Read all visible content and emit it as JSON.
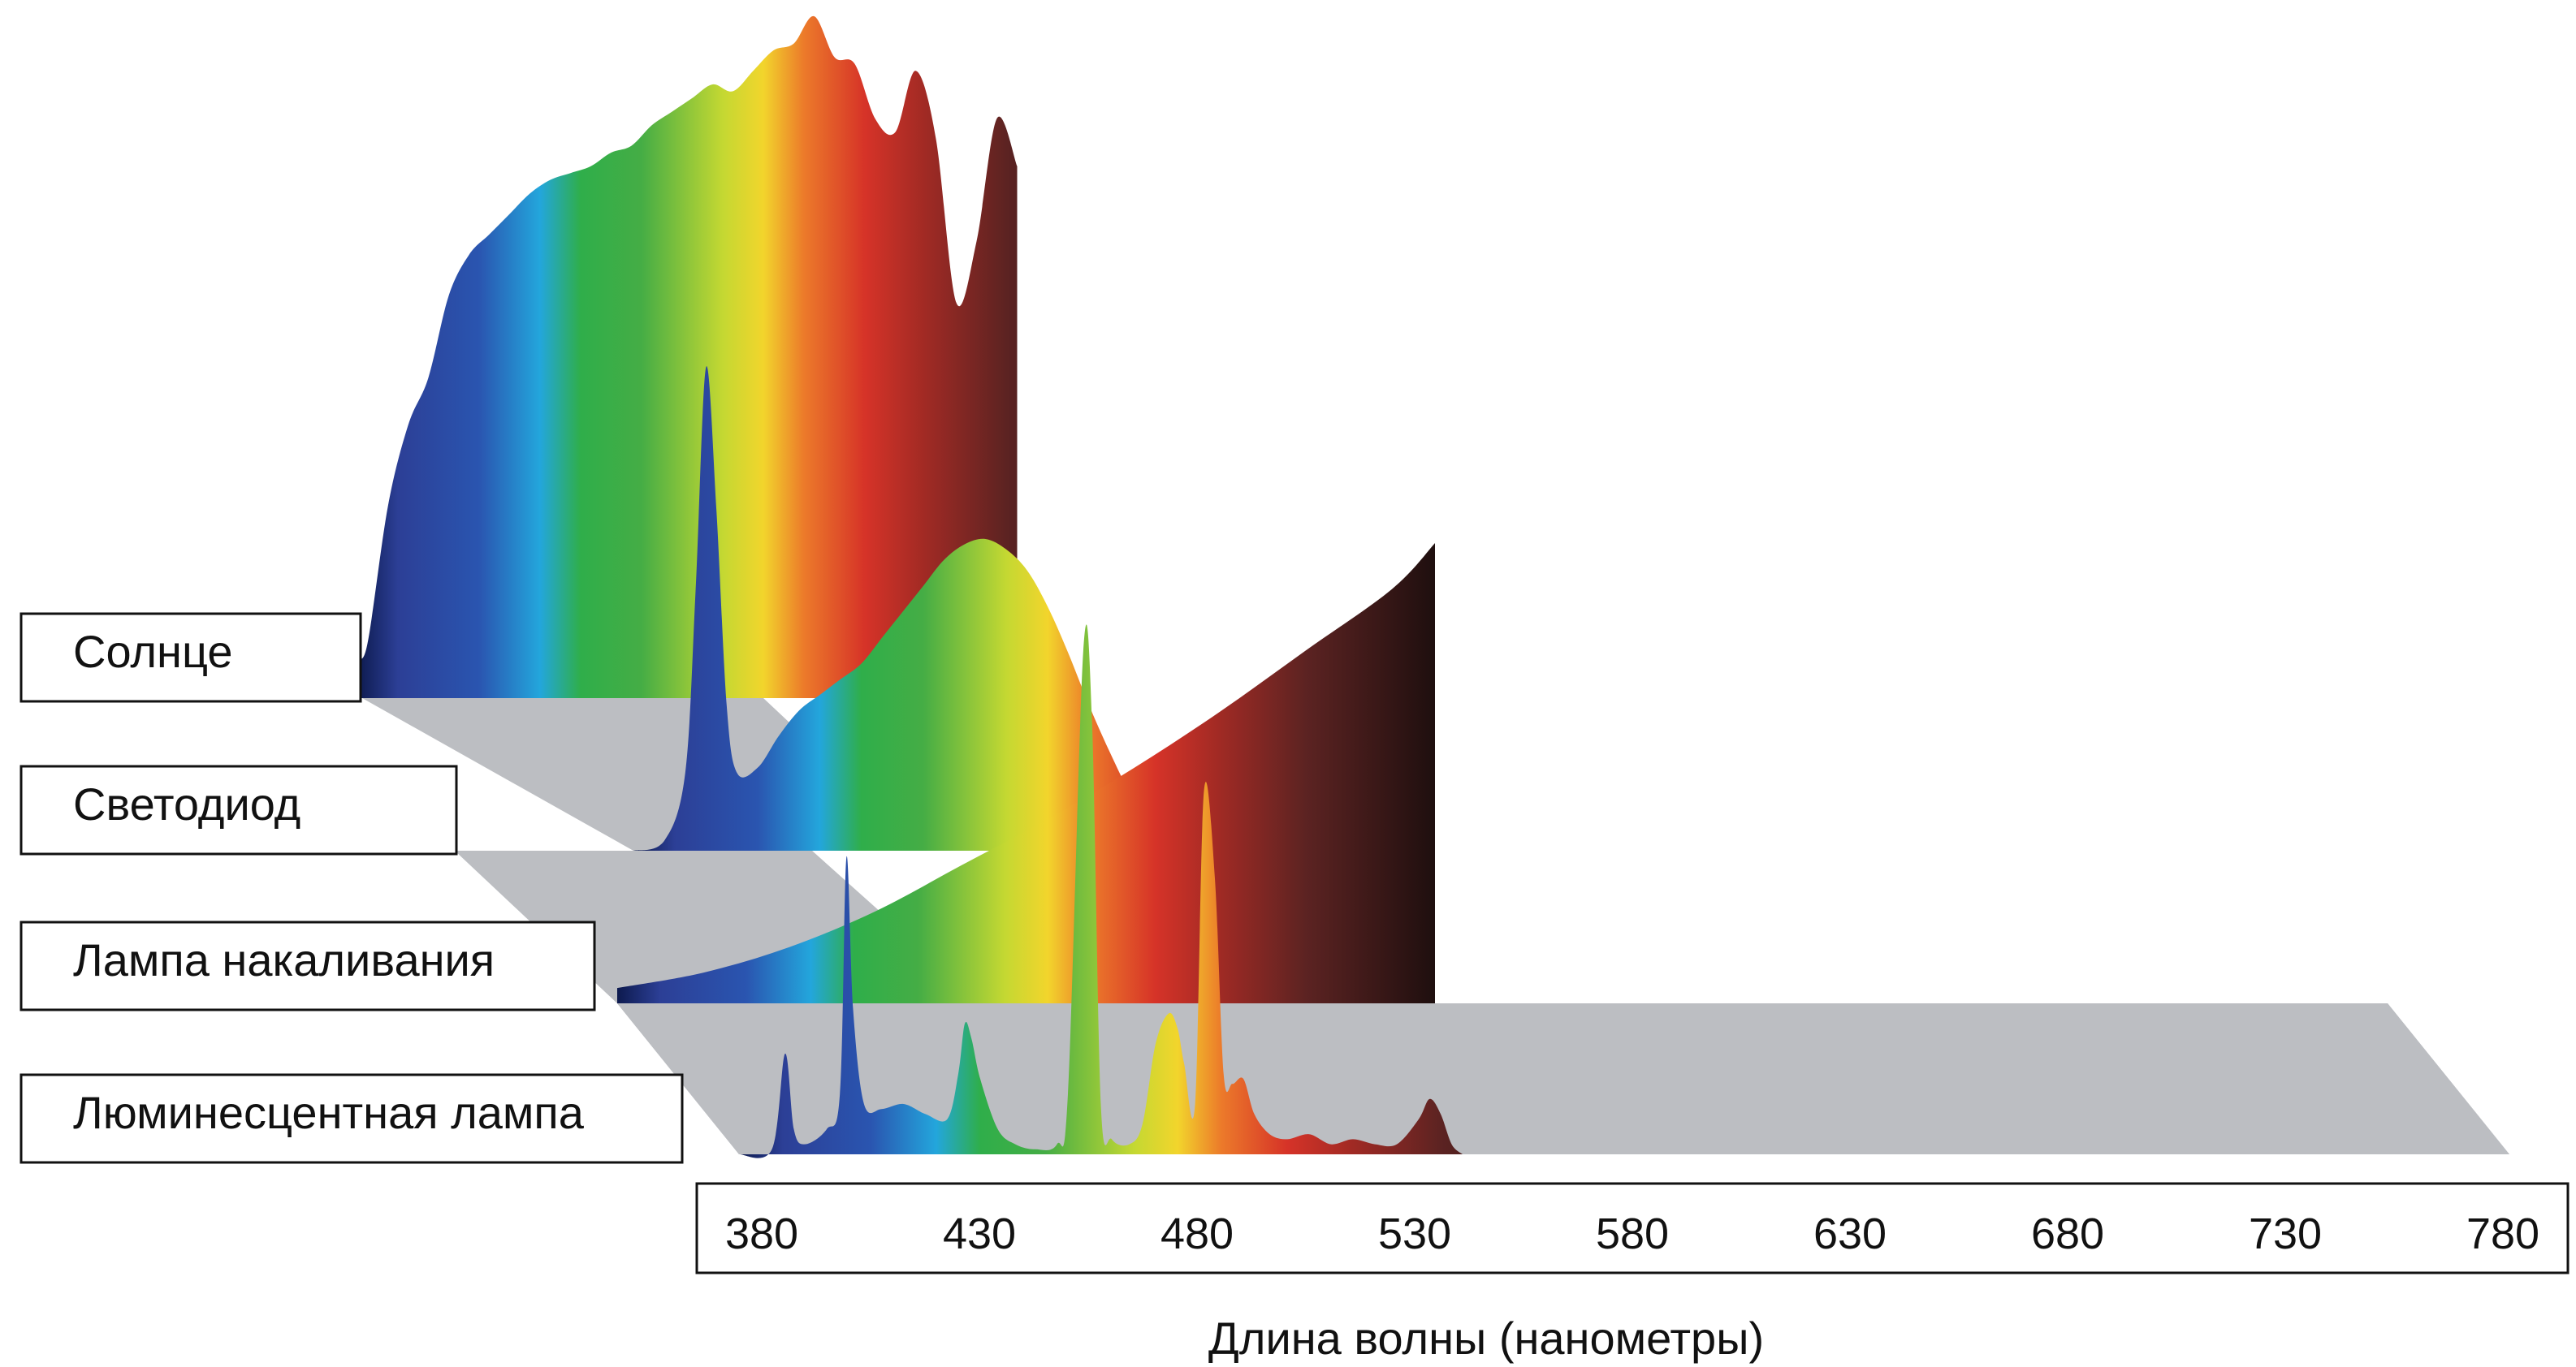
{
  "chart_data": {
    "type": "area",
    "title": "",
    "xlabel": "Длина волны (нанометры)",
    "ylabel": "",
    "x_ticks": [
      380,
      430,
      480,
      530,
      580,
      630,
      680,
      730,
      780
    ],
    "xlim": [
      380,
      780
    ],
    "gradient_colors": [
      "#0d1a4e",
      "#2c3f96",
      "#2a55b0",
      "#23a6dc",
      "#2fae4a",
      "#45ad45",
      "#c4d832",
      "#f2d52c",
      "#ec7a2a",
      "#d63328",
      "#a02a24",
      "#5c2322",
      "#0a0808"
    ],
    "series": [
      {
        "name": "Солнце",
        "x": [
          380,
          385,
          395,
          405,
          415,
          425,
          435,
          445,
          455,
          465,
          475,
          485,
          495,
          505,
          515,
          525,
          535,
          545,
          555,
          565,
          575,
          585,
          595,
          605,
          615,
          625,
          635,
          645,
          655,
          665,
          675,
          685,
          695,
          705
        ],
        "y": [
          0.06,
          0.08,
          0.28,
          0.4,
          0.47,
          0.59,
          0.65,
          0.68,
          0.71,
          0.74,
          0.76,
          0.77,
          0.78,
          0.8,
          0.81,
          0.84,
          0.86,
          0.88,
          0.9,
          0.89,
          0.92,
          0.95,
          0.96,
          1.0,
          0.94,
          0.93,
          0.85,
          0.83,
          0.92,
          0.82,
          0.58,
          0.67,
          0.85,
          0.78
        ]
      },
      {
        "name": "Светодиод",
        "x": [
          380,
          395,
          405,
          410,
          415,
          420,
          425,
          430,
          440,
          450,
          460,
          470,
          480,
          490,
          500,
          510,
          520,
          530,
          540,
          550,
          560,
          570,
          580,
          590,
          600,
          610,
          620,
          630,
          640,
          650
        ],
        "y": [
          0.0,
          0.02,
          0.15,
          0.5,
          0.93,
          0.66,
          0.28,
          0.15,
          0.16,
          0.22,
          0.27,
          0.3,
          0.33,
          0.36,
          0.41,
          0.46,
          0.51,
          0.56,
          0.59,
          0.6,
          0.58,
          0.54,
          0.47,
          0.38,
          0.28,
          0.19,
          0.11,
          0.06,
          0.03,
          0.0
        ]
      },
      {
        "name": "Лампа накаливания",
        "x": [
          380,
          420,
          460,
          500,
          540,
          580,
          620,
          660,
          700,
          740,
          760
        ],
        "y": [
          0.03,
          0.06,
          0.11,
          0.18,
          0.27,
          0.36,
          0.46,
          0.57,
          0.69,
          0.81,
          0.9
        ]
      },
      {
        "name": "Люминесцентная лампа",
        "x": [
          380,
          395,
          401,
          405,
          410,
          420,
          426,
          429,
          432,
          437,
          445,
          455,
          465,
          475,
          480,
          483,
          486,
          490,
          498,
          506,
          515,
          525,
          530,
          537,
          541,
          545,
          550,
          558,
          564,
          570,
          576,
          580,
          583,
          588,
          592,
          597,
          601,
          605,
          610,
          615,
          622,
          630,
          640,
          650,
          660,
          670,
          680,
          690,
          695,
          700,
          705,
          710
        ],
        "y": [
          0.0,
          0.01,
          0.2,
          0.05,
          0.02,
          0.05,
          0.12,
          0.59,
          0.29,
          0.1,
          0.09,
          0.1,
          0.08,
          0.07,
          0.16,
          0.26,
          0.23,
          0.15,
          0.05,
          0.02,
          0.01,
          0.02,
          0.12,
          1.0,
          0.86,
          0.1,
          0.03,
          0.02,
          0.06,
          0.22,
          0.28,
          0.25,
          0.18,
          0.1,
          0.72,
          0.55,
          0.16,
          0.14,
          0.15,
          0.08,
          0.04,
          0.03,
          0.04,
          0.02,
          0.03,
          0.02,
          0.02,
          0.07,
          0.11,
          0.08,
          0.02,
          0.0
        ]
      }
    ]
  }
}
